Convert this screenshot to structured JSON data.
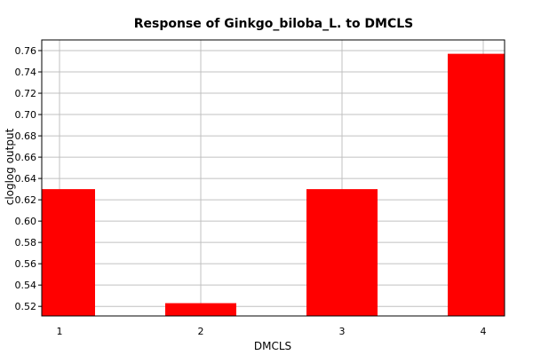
{
  "chart_data": {
    "type": "bar",
    "title": "Response of Ginkgo_biloba_L. to DMCLS",
    "xlabel": "DMCLS",
    "ylabel": "cloglog output",
    "categories": [
      "1",
      "2",
      "3",
      "4"
    ],
    "values": [
      0.63,
      0.523,
      0.63,
      0.757
    ],
    "ylim": [
      0.511,
      0.77
    ],
    "yticks": [
      "0.52",
      "0.54",
      "0.56",
      "0.58",
      "0.60",
      "0.62",
      "0.64",
      "0.66",
      "0.68",
      "0.70",
      "0.72",
      "0.74",
      "0.76"
    ],
    "grid": true,
    "bar_color": "#ff0000",
    "grid_color": "#c0c0c0"
  }
}
